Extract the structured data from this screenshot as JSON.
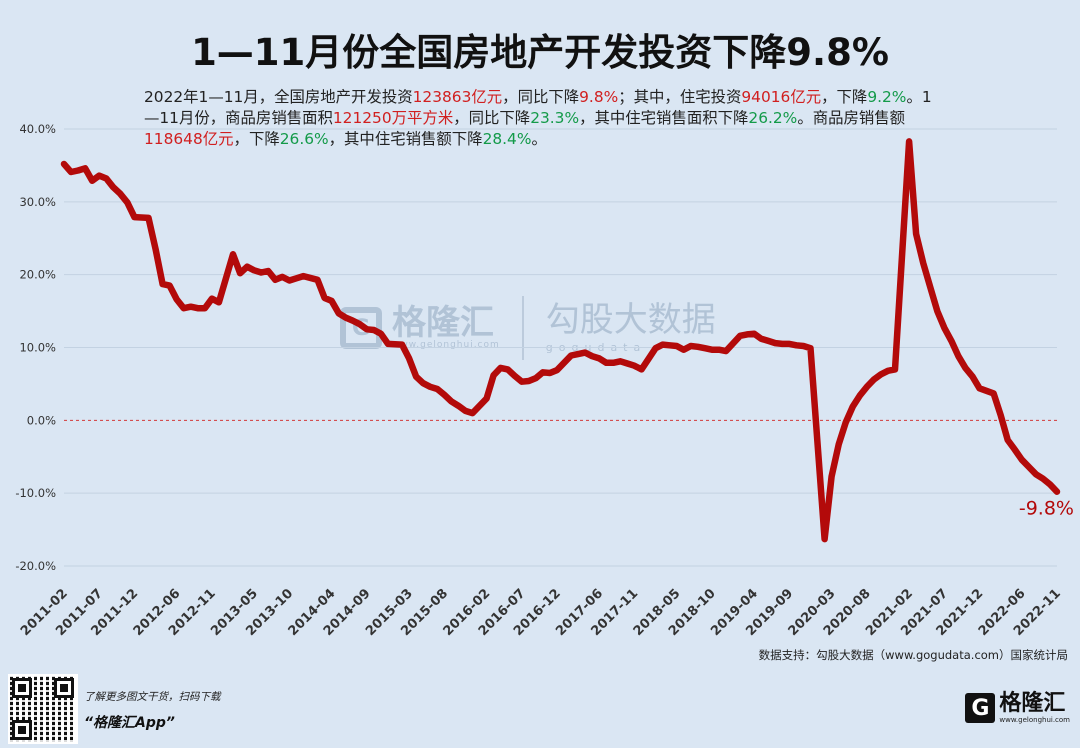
{
  "title": "1—11月份全国房地产开发投资下降9.8%",
  "subtitle": {
    "s1": "2022年1—11月，全国房地产开发投资",
    "v1": "123863亿元",
    "s2": "，同比下降",
    "v2": "9.8%",
    "s3": "；其中，住宅投资",
    "v3": "94016亿元",
    "s4": "，下降",
    "v4": "9.2%",
    "s5": "。1—11月份，商品房销售面积",
    "v5": "121250万平方米",
    "s6": "，同比下降",
    "v6": "23.3%",
    "s7": "，其中住宅销售面积下降",
    "v7": "26.2%",
    "s8": "。商品房销售额",
    "v8": "118648亿元",
    "s9": "，下降",
    "v9": "26.6%",
    "s10": "，其中住宅销售额下降",
    "v10": "28.4%",
    "s11": "。"
  },
  "source": "数据支持：勾股大数据（www.gogudata.com）国家统计局",
  "footer": {
    "promo_line1": "了解更多图文干货，扫码下载",
    "promo_line2": "“格隆汇App”",
    "brand_mark": "G",
    "brand_name": "格隆汇",
    "brand_url": "www.gelonghui.com"
  },
  "watermark": {
    "mark": "G",
    "name": "格隆汇",
    "url": "www.gelonghui.com",
    "name2": "勾股大数据",
    "url2": "gogudata"
  },
  "colors": {
    "background": "#dae6f3",
    "line": "#b30a0a",
    "zero_line": "#d23a3a",
    "highlight_red": "#d11f1f",
    "highlight_green": "#139a49"
  },
  "chart_data": {
    "type": "line",
    "xlabel": "",
    "ylabel": "",
    "ylim": [
      -20,
      40
    ],
    "yticks": [
      -20,
      -10,
      0,
      10,
      20,
      30,
      40
    ],
    "ytick_labels": [
      "-20.0%",
      "-10.0%",
      "0.0%",
      "10.0%",
      "20.0%",
      "30.0%",
      "40.0%"
    ],
    "grid": true,
    "end_annotation": "-9.8%",
    "x_tick_labels": [
      "2011-02",
      "2011-07",
      "2011-12",
      "2012-06",
      "2012-11",
      "2013-05",
      "2013-10",
      "2014-04",
      "2014-09",
      "2015-03",
      "2015-08",
      "2016-02",
      "2016-07",
      "2016-12",
      "2017-06",
      "2017-11",
      "2018-05",
      "2018-10",
      "2019-04",
      "2019-09",
      "2020-03",
      "2020-08",
      "2021-02",
      "2021-07",
      "2021-12",
      "2022-06",
      "2022-11"
    ],
    "series": [
      {
        "x": [
          "2011-02",
          "2011-03",
          "2011-04",
          "2011-05",
          "2011-06",
          "2011-07",
          "2011-08",
          "2011-09",
          "2011-10",
          "2011-11",
          "2011-12",
          "2012-02",
          "2012-03",
          "2012-04",
          "2012-05",
          "2012-06",
          "2012-07",
          "2012-08",
          "2012-09",
          "2012-10",
          "2012-11",
          "2012-12",
          "2013-02",
          "2013-03",
          "2013-04",
          "2013-05",
          "2013-06",
          "2013-07",
          "2013-08",
          "2013-09",
          "2013-10",
          "2013-11",
          "2013-12",
          "2014-02",
          "2014-03",
          "2014-04",
          "2014-05",
          "2014-06",
          "2014-07",
          "2014-08",
          "2014-09",
          "2014-10",
          "2014-11",
          "2014-12",
          "2015-02",
          "2015-03",
          "2015-04",
          "2015-05",
          "2015-06",
          "2015-07",
          "2015-08",
          "2015-09",
          "2015-10",
          "2015-11",
          "2015-12",
          "2016-02",
          "2016-03",
          "2016-04",
          "2016-05",
          "2016-06",
          "2016-07",
          "2016-08",
          "2016-09",
          "2016-10",
          "2016-11",
          "2016-12",
          "2017-02",
          "2017-03",
          "2017-04",
          "2017-05",
          "2017-06",
          "2017-07",
          "2017-08",
          "2017-09",
          "2017-10",
          "2017-11",
          "2017-12",
          "2018-02",
          "2018-03",
          "2018-04",
          "2018-05",
          "2018-06",
          "2018-07",
          "2018-08",
          "2018-09",
          "2018-10",
          "2018-11",
          "2018-12",
          "2019-02",
          "2019-03",
          "2019-04",
          "2019-05",
          "2019-06",
          "2019-07",
          "2019-08",
          "2019-09",
          "2019-10",
          "2019-11",
          "2019-12",
          "2020-02",
          "2020-03",
          "2020-04",
          "2020-05",
          "2020-06",
          "2020-07",
          "2020-08",
          "2020-09",
          "2020-10",
          "2020-11",
          "2020-12",
          "2021-02",
          "2021-03",
          "2021-04",
          "2021-05",
          "2021-06",
          "2021-07",
          "2021-08",
          "2021-09",
          "2021-10",
          "2021-11",
          "2021-12",
          "2022-02",
          "2022-03",
          "2022-04",
          "2022-05",
          "2022-06",
          "2022-07",
          "2022-08",
          "2022-09",
          "2022-10",
          "2022-11"
        ],
        "values": [
          35.2,
          34.1,
          34.3,
          34.6,
          32.9,
          33.6,
          33.2,
          32.0,
          31.1,
          29.9,
          27.9,
          27.8,
          23.5,
          18.7,
          18.5,
          16.6,
          15.4,
          15.6,
          15.4,
          15.4,
          16.7,
          16.2,
          22.8,
          20.2,
          21.1,
          20.6,
          20.3,
          20.5,
          19.3,
          19.7,
          19.2,
          19.5,
          19.8,
          19.3,
          16.8,
          16.4,
          14.7,
          14.1,
          13.7,
          13.2,
          12.5,
          12.4,
          11.9,
          10.5,
          10.4,
          8.5,
          6.0,
          5.1,
          4.6,
          4.3,
          3.5,
          2.6,
          2.0,
          1.3,
          1.0,
          3.0,
          6.2,
          7.2,
          7.0,
          6.1,
          5.3,
          5.4,
          5.8,
          6.6,
          6.5,
          6.9,
          8.9,
          9.1,
          9.3,
          8.8,
          8.5,
          7.9,
          7.9,
          8.1,
          7.8,
          7.5,
          7.0,
          9.9,
          10.4,
          10.3,
          10.2,
          9.7,
          10.2,
          10.1,
          9.9,
          9.7,
          9.7,
          9.5,
          11.6,
          11.8,
          11.9,
          11.2,
          10.9,
          10.6,
          10.5,
          10.5,
          10.3,
          10.2,
          9.9,
          -16.3,
          -7.7,
          -3.3,
          -0.3,
          1.9,
          3.4,
          4.6,
          5.6,
          6.3,
          6.8,
          7.0,
          38.3,
          25.6,
          21.6,
          18.3,
          15.0,
          12.7,
          10.9,
          8.8,
          7.2,
          6.0,
          4.4,
          3.7,
          0.7,
          -2.7,
          -4.0,
          -5.4,
          -6.4,
          -7.4,
          -8.0,
          -8.8,
          -9.8
        ]
      }
    ]
  }
}
